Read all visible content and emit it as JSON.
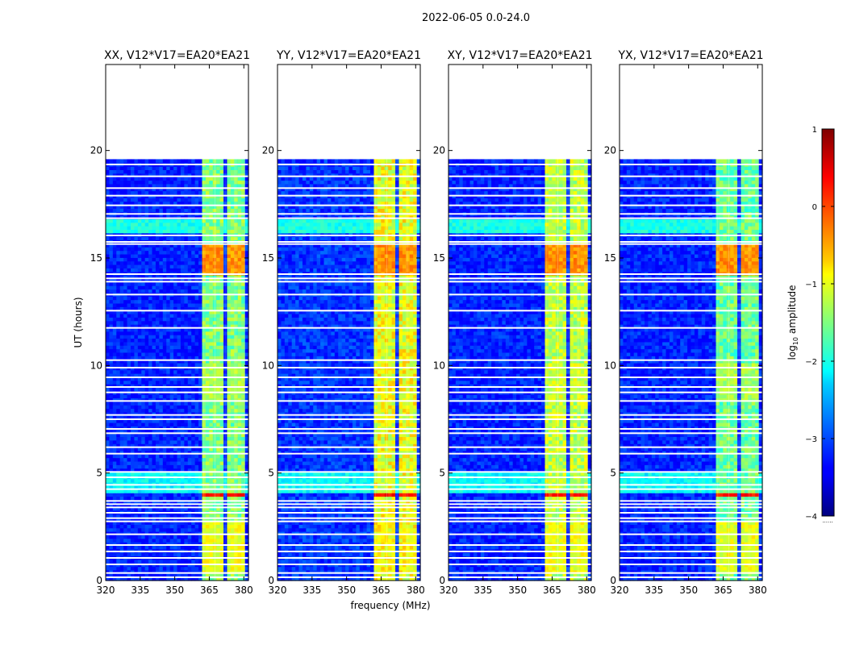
{
  "figure_title": "2022-06-05 0.0-24.0",
  "chart_data": {
    "type": "heatmap",
    "title": "2022-06-05 0.0-24.0",
    "xlabel": "frequency (MHz)",
    "ylabel": "UT (hours)",
    "xlim": [
      320,
      382
    ],
    "ylim": [
      0,
      24
    ],
    "xticks": [
      320,
      335,
      350,
      365,
      380
    ],
    "yticks": [
      0,
      5,
      10,
      15,
      20
    ],
    "data_end_hour": 19.6,
    "colorbar": {
      "label": "log10 amplitude",
      "label_main": "log",
      "label_sub": "10",
      "label_rest": " amplitude",
      "range": [
        -4,
        1
      ],
      "ticks": [
        1,
        0,
        -1,
        -2,
        -3,
        -4
      ],
      "tick_labels": [
        "1",
        "0",
        "−1",
        "−2",
        "−3",
        "−4"
      ],
      "extra_label": "......"
    },
    "panels": [
      {
        "title": "XX, V12*V17=EA20*EA21",
        "pol": "XX"
      },
      {
        "title": "YY, V12*V17=EA20*EA21",
        "pol": "YY"
      },
      {
        "title": "XY, V12*V17=EA20*EA21",
        "pol": "XY"
      },
      {
        "title": "YX, V12*V17=EA20*EA21",
        "pol": "YX"
      }
    ],
    "rfi_channels_mhz": [
      [
        362.5,
        367.5
      ],
      [
        367.5,
        371.5
      ],
      [
        372,
        376
      ],
      [
        376.5,
        380.5
      ]
    ],
    "gap_hours": [
      19.35,
      18.8,
      18.25,
      17.9,
      17.45,
      17.05,
      16.85,
      16.05,
      15.75,
      15.65,
      14.25,
      14.05,
      13.9,
      13.3,
      12.55,
      11.75,
      10.25,
      9.9,
      9.45,
      9.0,
      8.75,
      8.35,
      7.7,
      7.5,
      7.05,
      6.85,
      6.2,
      5.9,
      5.05,
      4.8,
      4.45,
      4.25,
      3.7,
      3.55,
      3.4,
      3.15,
      2.9,
      2.75,
      2.15,
      1.65,
      1.35,
      1.05,
      0.75,
      0.35,
      0.15
    ],
    "bright_bands": [
      {
        "start": 14.25,
        "end": 15.6,
        "level": -0.4,
        "scope": "rfi"
      },
      {
        "start": 8.4,
        "end": 10.1,
        "level": -1.3,
        "scope": "rfi"
      },
      {
        "start": 3.9,
        "end": 4.1,
        "level": 0.3,
        "scope": "rfi"
      },
      {
        "start": 0.4,
        "end": 2.8,
        "level": -1.0,
        "scope": "rfi"
      },
      {
        "start": 16.1,
        "end": 16.9,
        "level": -2.0,
        "scope": "all"
      },
      {
        "start": 4.1,
        "end": 5.1,
        "level": -2.1,
        "scope": "all"
      }
    ],
    "series": [
      {
        "name": "XX",
        "background_level": -3.2,
        "rfi_level": -1.5
      },
      {
        "name": "YY",
        "background_level": -3.1,
        "rfi_level": -1.0
      },
      {
        "name": "XY",
        "background_level": -3.2,
        "rfi_level": -1.2
      },
      {
        "name": "YX",
        "background_level": -3.2,
        "rfi_level": -1.6
      }
    ]
  }
}
